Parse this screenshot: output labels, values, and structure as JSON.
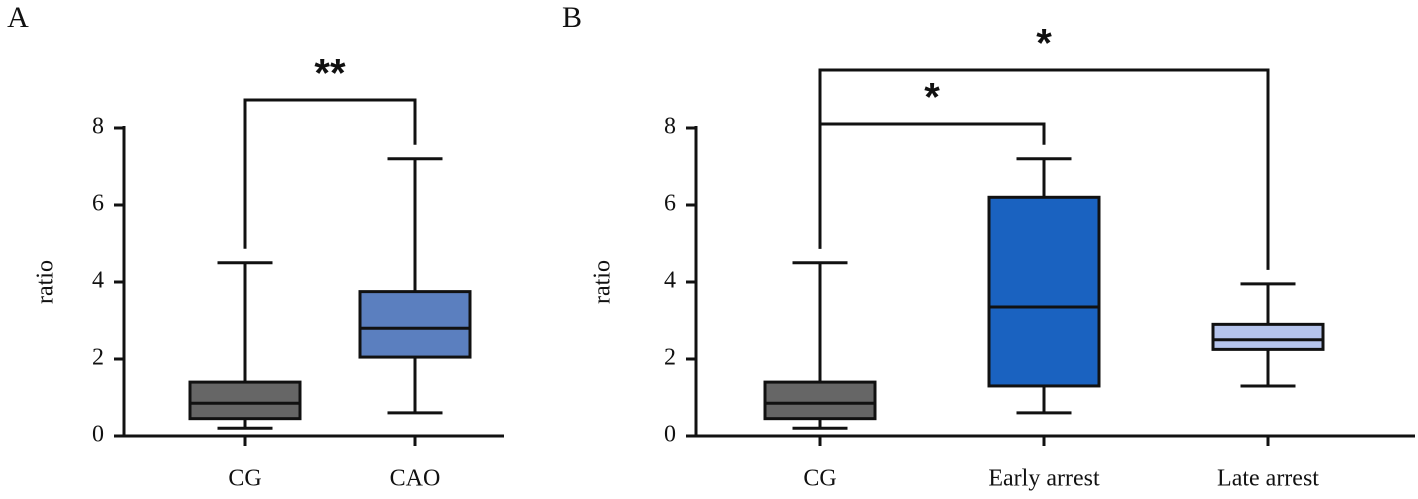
{
  "chart_data": [
    {
      "type": "box",
      "panel": "A",
      "ylabel": "ratio",
      "categories": [
        "CG",
        "CAO"
      ],
      "colors": [
        "#666666",
        "#5b7fbf"
      ],
      "min": [
        0.2,
        0.6
      ],
      "q1": [
        0.45,
        2.05
      ],
      "median": [
        0.85,
        2.8
      ],
      "q3": [
        1.4,
        3.75
      ],
      "max": [
        4.5,
        7.2
      ],
      "ylim": [
        0,
        8
      ],
      "yticks": [
        0,
        2,
        4,
        6,
        8
      ],
      "annotations": [
        {
          "text": "**",
          "between": [
            "CG",
            "CAO"
          ]
        }
      ]
    },
    {
      "type": "box",
      "panel": "B",
      "ylabel": "ratio",
      "categories": [
        "CG",
        "Early arrest",
        "Late arrest"
      ],
      "colors": [
        "#666666",
        "#1a62c0",
        "#b5c4ec"
      ],
      "min": [
        0.2,
        0.6,
        1.3
      ],
      "q1": [
        0.45,
        1.3,
        2.25
      ],
      "median": [
        0.85,
        3.35,
        2.5
      ],
      "q3": [
        1.4,
        6.2,
        2.9
      ],
      "max": [
        4.5,
        7.2,
        3.95
      ],
      "ylim": [
        0,
        8
      ],
      "yticks": [
        0,
        2,
        4,
        6,
        8
      ],
      "annotations": [
        {
          "text": "*",
          "between": [
            "CG",
            "Early arrest"
          ]
        },
        {
          "text": "*",
          "between": [
            "CG",
            "Late arrest"
          ]
        }
      ]
    }
  ]
}
